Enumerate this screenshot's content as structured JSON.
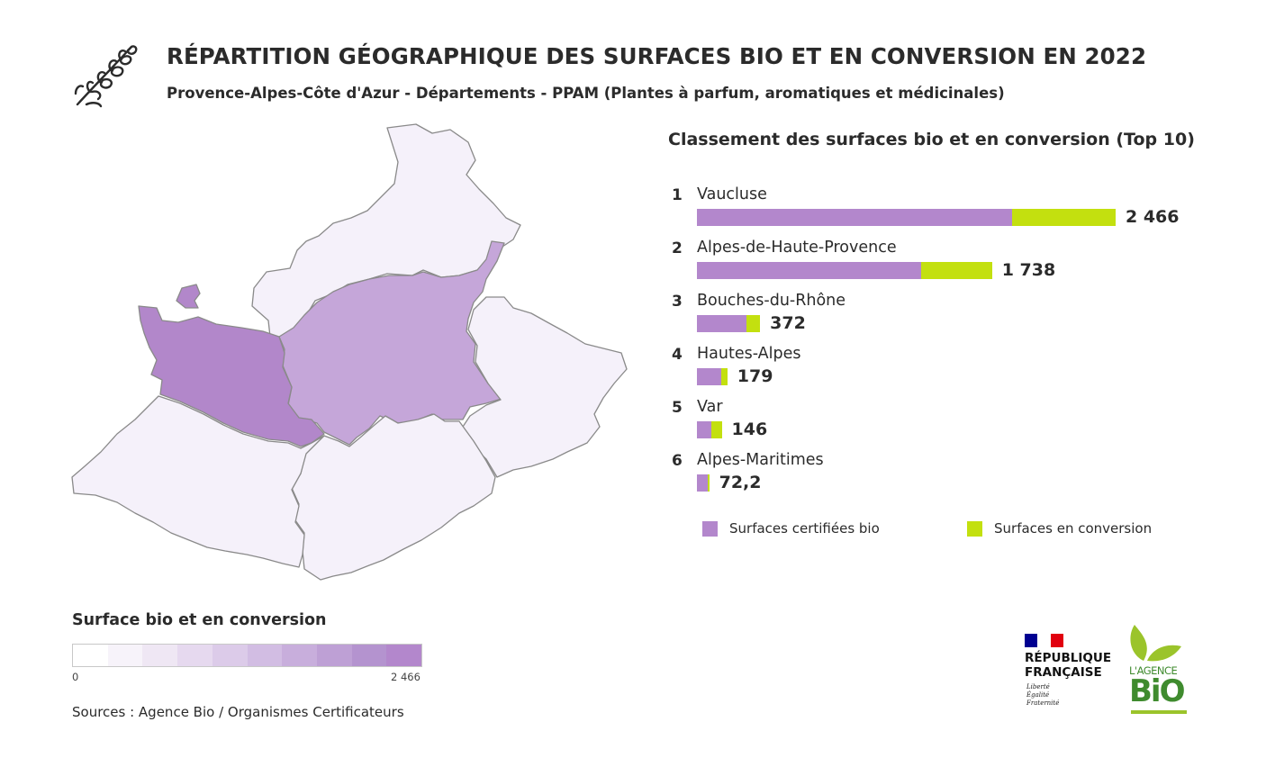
{
  "header": {
    "title": "RÉPARTITION GÉOGRAPHIQUE DES SURFACES BIO ET EN CONVERSION EN 2022",
    "subtitle": "Provence-Alpes-Côte d'Azur - Départements - PPAM (Plantes à parfum, aromatiques et médicinales)",
    "icon": "lavender-sprig-icon"
  },
  "colors": {
    "bio": "#b387cc",
    "conversion": "#c3e00f",
    "map_level_1": "#f5f1fa",
    "map_level_2": "#c5a6d9",
    "map_level_3": "#b287ca",
    "map_border": "#8a8a8a"
  },
  "map": {
    "departments": [
      {
        "name": "Hautes-Alpes",
        "value": 179,
        "level": "map_level_1"
      },
      {
        "name": "Alpes-de-Haute-Provence",
        "value": 1738,
        "level": "map_level_2"
      },
      {
        "name": "Vaucluse",
        "value": 2466,
        "level": "map_level_3"
      },
      {
        "name": "Bouches-du-Rhône",
        "value": 372,
        "level": "map_level_1"
      },
      {
        "name": "Var",
        "value": 146,
        "level": "map_level_1"
      },
      {
        "name": "Alpes-Maritimes",
        "value": 72.2,
        "level": "map_level_1"
      }
    ]
  },
  "chart_data": {
    "type": "bar",
    "orientation": "horizontal",
    "stacked": true,
    "title": "Classement des surfaces bio et en conversion (Top 10)",
    "categories": [
      "Vaucluse",
      "Alpes-de-Haute-Provence",
      "Bouches-du-Rhône",
      "Hautes-Alpes",
      "Var",
      "Alpes-Maritimes"
    ],
    "ranks": [
      "1",
      "2",
      "3",
      "4",
      "5",
      "6"
    ],
    "totals": [
      2466,
      1738,
      372,
      179,
      146,
      72.2
    ],
    "total_labels": [
      "2 466",
      "1 738",
      "372",
      "179",
      "146",
      "72,2"
    ],
    "series": [
      {
        "name": "Surfaces certifiées bio",
        "values": [
          1855,
          1320,
          292,
          144,
          86,
          64
        ],
        "color": "#b387cc"
      },
      {
        "name": "Surfaces en conversion",
        "values": [
          611,
          418,
          80,
          35,
          60,
          8.2
        ],
        "color": "#c3e00f"
      }
    ],
    "xlim": [
      0,
      2466
    ],
    "legend_position": "bottom"
  },
  "scale": {
    "title": "Surface bio et en conversion",
    "min_label": "0",
    "max_label": "2 466",
    "colors": [
      "#ffffff",
      "#f7f3fa",
      "#efe7f4",
      "#e6d9ef",
      "#dccbe9",
      "#d2bde3",
      "#c8aedc",
      "#bea0d5",
      "#b493cf",
      "#b387cc"
    ]
  },
  "sources": "Sources : Agence Bio / Organismes Certificateurs",
  "logos": {
    "republique": {
      "name": "RÉPUBLIQUE\nFRANÇAISE",
      "motto": "Liberté\nÉgalité\nFraternité",
      "flag": [
        "#000091",
        "#ffffff",
        "#e1000f"
      ]
    },
    "agence_bio": {
      "line1": "L'AGENCE",
      "line2": "BiO"
    }
  }
}
